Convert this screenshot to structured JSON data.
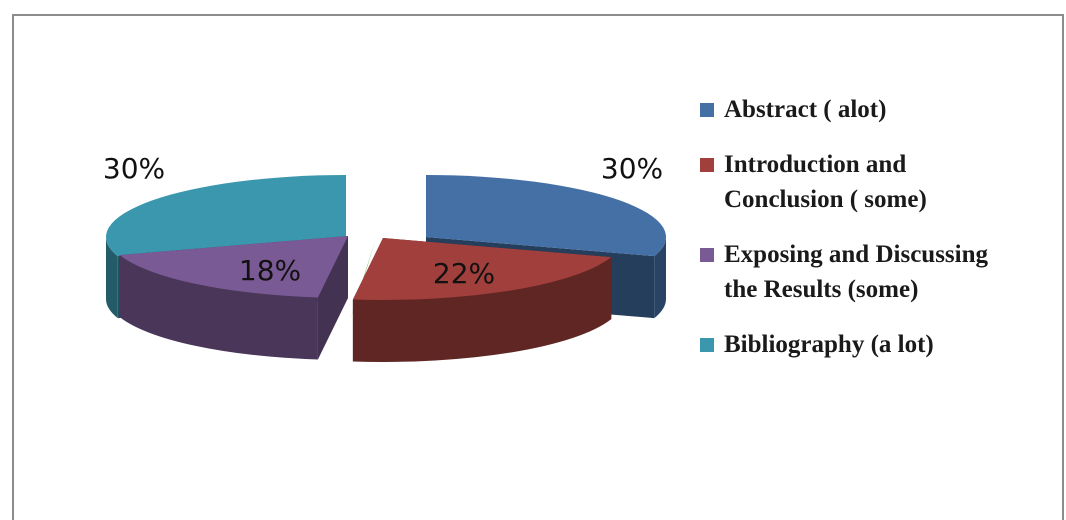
{
  "chart_data": {
    "type": "pie",
    "title": "",
    "slices": [
      {
        "label": "Abstract ( alot)",
        "value": 30,
        "display": "30%",
        "color": "#4470a6"
      },
      {
        "label": "Introduction and Conclusion ( some)",
        "value": 22,
        "display": "22%",
        "color": "#a03f3c"
      },
      {
        "label": "Exposing and Discussing the Results (some)",
        "value": 18,
        "display": "18%",
        "color": "#7a5a95"
      },
      {
        "label": "Bibliography (a lot)",
        "value": 30,
        "display": "30%",
        "color": "#3a97ad"
      }
    ],
    "other_slice": {
      "color": "#7d9a3c"
    },
    "legend_position": "right"
  },
  "legend": {
    "item0": {
      "line1": "Abstract ( alot)",
      "line2": ""
    },
    "item1": {
      "line1": "Introduction and",
      "line2": "Conclusion ( some)"
    },
    "item2": {
      "line1": "Exposing and Discussing",
      "line2": "the Results (some)"
    },
    "item3": {
      "line1": "Bibliography (a lot)",
      "line2": ""
    }
  }
}
